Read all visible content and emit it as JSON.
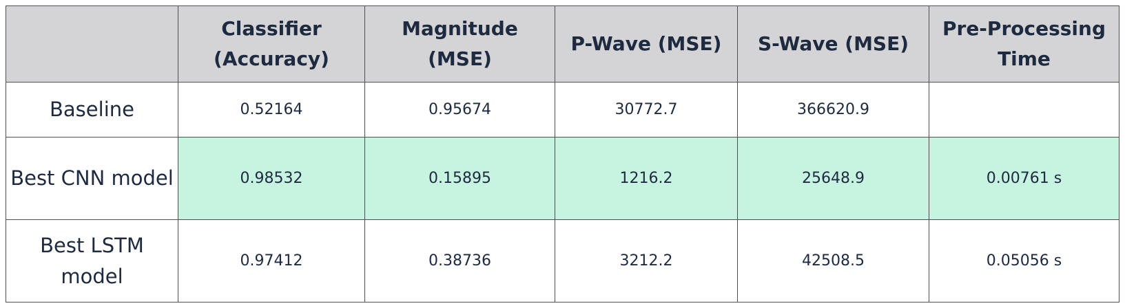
{
  "table": {
    "headers": {
      "label": "",
      "classifier": "Classifier (Accuracy)",
      "magnitude": "Magnitude (MSE)",
      "p_wave": "P-Wave (MSE)",
      "s_wave": "S-Wave (MSE)",
      "preprocessing": "Pre-Processing Time"
    },
    "rows": [
      {
        "label": "Baseline",
        "classifier": "0.52164",
        "magnitude": "0.95674",
        "p_wave": "30772.7",
        "s_wave": "366620.9",
        "preprocessing": ""
      },
      {
        "label": "Best CNN model",
        "classifier": "0.98532",
        "magnitude": "0.15895",
        "p_wave": "1216.2",
        "s_wave": "25648.9",
        "preprocessing": "0.00761 s",
        "highlighted": true
      },
      {
        "label": "Best LSTM model",
        "classifier": "0.97412",
        "magnitude": "0.38736",
        "p_wave": "3212.2",
        "s_wave": "42508.5",
        "preprocessing": "0.05056 s"
      }
    ],
    "colors": {
      "header_background": "#d4d4d6",
      "highlight_background": "#c7f3e1",
      "border": "#4d4d4d",
      "text": "#1e2a3f"
    }
  }
}
